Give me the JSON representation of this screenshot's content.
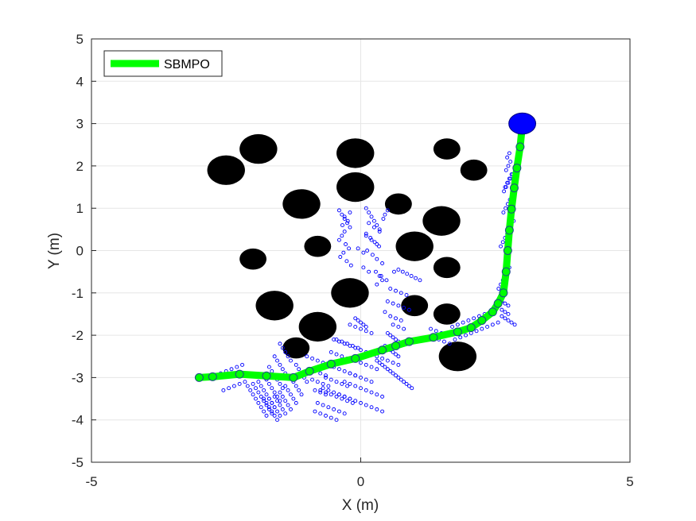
{
  "chart_data": {
    "type": "scatter",
    "title": "",
    "xlabel": "X (m)",
    "ylabel": "Y (m)",
    "xlim": [
      -5,
      5
    ],
    "ylim": [
      -5,
      5
    ],
    "xticks": [
      "-5",
      "0",
      "5"
    ],
    "yticks": [
      "5",
      "4",
      "3",
      "2",
      "1",
      "0",
      "-1",
      "-2",
      "-3",
      "-4",
      "-5"
    ],
    "grid": true,
    "legend": {
      "position": "top-left",
      "entries": [
        "SBMPO"
      ]
    },
    "colors": {
      "path": "#00ff00",
      "obstacle": "#000000",
      "samples": "#0000ff",
      "goal": "#0000ff"
    },
    "obstacles": [
      {
        "x": -1.9,
        "y": 2.4,
        "r": 0.35
      },
      {
        "x": -2.5,
        "y": 1.9,
        "r": 0.35
      },
      {
        "x": -0.1,
        "y": 2.3,
        "r": 0.35
      },
      {
        "x": -0.1,
        "y": 1.5,
        "r": 0.35
      },
      {
        "x": 1.6,
        "y": 2.4,
        "r": 0.25
      },
      {
        "x": 2.1,
        "y": 1.9,
        "r": 0.25
      },
      {
        "x": -1.1,
        "y": 1.1,
        "r": 0.35
      },
      {
        "x": 0.7,
        "y": 1.1,
        "r": 0.25
      },
      {
        "x": 1.5,
        "y": 0.7,
        "r": 0.35
      },
      {
        "x": -0.8,
        "y": 0.1,
        "r": 0.25
      },
      {
        "x": 1.0,
        "y": 0.1,
        "r": 0.35
      },
      {
        "x": -2.0,
        "y": -0.2,
        "r": 0.25
      },
      {
        "x": 1.6,
        "y": -0.4,
        "r": 0.25
      },
      {
        "x": -0.2,
        "y": -1.0,
        "r": 0.35
      },
      {
        "x": -1.6,
        "y": -1.3,
        "r": 0.35
      },
      {
        "x": 1.0,
        "y": -1.3,
        "r": 0.25
      },
      {
        "x": 1.6,
        "y": -1.5,
        "r": 0.25
      },
      {
        "x": -0.8,
        "y": -1.8,
        "r": 0.35
      },
      {
        "x": -1.2,
        "y": -2.3,
        "r": 0.25
      },
      {
        "x": 1.8,
        "y": -2.5,
        "r": 0.35
      }
    ],
    "series": [
      {
        "name": "SBMPO",
        "x": [
          -3.0,
          -2.75,
          -2.25,
          -1.75,
          -1.25,
          -0.95,
          -0.55,
          -0.1,
          0.4,
          0.65,
          0.9,
          1.35,
          1.8,
          2.05,
          2.25,
          2.45,
          2.55,
          2.65,
          2.7,
          2.73,
          2.76,
          2.8,
          2.85,
          2.9,
          2.96,
          3.0
        ],
        "y": [
          -3.0,
          -2.98,
          -2.92,
          -2.96,
          -3.0,
          -2.85,
          -2.68,
          -2.55,
          -2.35,
          -2.25,
          -2.15,
          -2.05,
          -1.92,
          -1.82,
          -1.65,
          -1.45,
          -1.25,
          -1.0,
          -0.5,
          0.0,
          0.48,
          0.98,
          1.48,
          1.95,
          2.45,
          2.95
        ]
      }
    ],
    "goal": {
      "x": 3.0,
      "y": 3.0
    },
    "samples": {
      "x": [
        -0.4,
        -0.35,
        -0.3,
        -0.25,
        -0.2,
        -0.3,
        -0.35,
        -0.4,
        -0.28,
        -0.22,
        -0.32,
        -0.38,
        -0.26,
        -0.18,
        -0.34,
        -0.24,
        -0.3,
        -0.2,
        0.1,
        0.15,
        0.2,
        0.25,
        0.3,
        0.35,
        0.1,
        0.18,
        0.26,
        0.34,
        0.12,
        0.22,
        0.3,
        0.4,
        0.05,
        0.15,
        0.25,
        0.35,
        0.1,
        0.2,
        0.3,
        -0.05,
        0.05,
        0.15,
        0.42,
        0.45,
        0.5,
        0.38,
        0.48,
        0.3,
        0.28,
        0.35,
        0.4,
        0.62,
        0.7,
        0.78,
        0.86,
        0.94,
        1.02,
        1.1,
        0.55,
        0.65,
        0.75,
        0.85,
        0.5,
        0.6,
        0.7,
        0.8,
        0.9,
        0.45,
        0.55,
        0.65,
        0.75,
        0.6,
        0.7,
        0.8,
        0.5,
        0.55,
        0.6,
        0.65,
        0.7,
        0.45,
        0.5,
        0.55,
        0.6,
        0.65,
        0.7,
        -0.1,
        -0.05,
        0.0,
        0.05,
        0.1,
        -0.2,
        -0.1,
        0.0,
        0.1,
        0.2,
        0.3,
        0.35,
        0.4,
        0.45,
        0.5,
        0.55,
        0.6,
        0.65,
        0.7,
        0.75,
        0.8,
        0.85,
        0.9,
        0.95,
        -0.45,
        -0.35,
        -0.25,
        -0.15,
        -0.05,
        -0.55,
        -0.45,
        -0.35,
        -0.25,
        -0.6,
        -0.5,
        -0.4,
        -0.3,
        -0.2,
        -0.1,
        -0.65,
        -0.55,
        -0.45,
        -0.35,
        -0.25,
        -0.7,
        -0.6,
        -0.5,
        -0.4,
        -0.3,
        -0.2,
        -0.75,
        -0.65,
        -0.55,
        -0.45,
        -0.35,
        -0.25,
        -0.15,
        -0.8,
        -0.7,
        -0.6,
        -0.5,
        -0.4,
        -0.3,
        -0.85,
        -0.75,
        -0.65,
        -0.55,
        -0.45,
        -0.1,
        0.0,
        0.1,
        0.2,
        0.3,
        -0.2,
        -0.1,
        0.0,
        0.1,
        0.2,
        -0.3,
        -0.2,
        -0.1,
        0.0,
        0.1,
        0.2,
        0.3,
        0.4,
        -0.4,
        -0.3,
        -0.2,
        -0.1,
        0.0,
        0.1,
        0.2,
        0.3,
        0.4,
        -0.5,
        -0.4,
        -0.3,
        -0.2,
        -0.1,
        0.0,
        0.1,
        0.2,
        0.3,
        0.4,
        0.5,
        0.6,
        0.7,
        -1.5,
        -1.45,
        -1.4,
        -1.35,
        -1.3,
        -1.6,
        -1.55,
        -1.5,
        -1.45,
        -1.4,
        -1.35,
        -1.7,
        -1.65,
        -1.6,
        -1.55,
        -1.5,
        -1.45,
        -1.8,
        -1.75,
        -1.7,
        -1.65,
        -1.6,
        -1.55,
        -1.5,
        -1.9,
        -1.85,
        -1.8,
        -1.75,
        -1.7,
        -1.65,
        -1.6,
        -2.0,
        -1.95,
        -1.9,
        -1.85,
        -1.8,
        -1.75,
        -1.7,
        -1.65,
        -2.1,
        -2.05,
        -2.0,
        -1.95,
        -1.9,
        -1.85,
        -1.8,
        -1.75,
        -1.2,
        -1.15,
        -1.1,
        -1.05,
        -1.0,
        -1.3,
        -1.25,
        -1.2,
        -1.15,
        -1.1,
        -1.4,
        -1.35,
        -1.3,
        -1.25,
        -1.2,
        -1.5,
        -1.45,
        -1.4,
        -1.35,
        -1.3,
        -1.6,
        -1.55,
        -1.5,
        -1.45,
        -1.4,
        -1.7,
        -1.65,
        -1.6,
        -1.55,
        -1.5,
        -1.8,
        -1.75,
        -1.7,
        -1.65,
        -1.6,
        -1.55,
        -2.2,
        -2.3,
        -2.4,
        -2.5,
        -2.6,
        -2.7,
        -2.15,
        -2.25,
        -2.35,
        -2.45,
        -2.55,
        -1.0,
        -0.9,
        -0.8,
        -0.7,
        -0.95,
        -0.85,
        -0.75,
        -0.65,
        -0.9,
        -0.8,
        -0.7,
        -0.6,
        -0.85,
        -0.75,
        -0.65,
        1.3,
        1.4,
        1.5,
        1.6,
        1.7,
        1.8,
        1.9,
        2.0,
        2.1,
        2.2,
        2.3,
        2.4,
        2.5,
        1.35,
        1.45,
        1.55,
        1.65,
        1.75,
        1.85,
        1.95,
        2.05,
        2.15,
        2.25,
        2.35,
        2.45,
        2.55,
        2.62,
        2.68,
        2.74,
        2.62,
        2.68,
        2.74,
        2.8,
        2.86,
        2.62,
        2.68,
        2.74,
        2.56,
        2.6,
        2.64,
        2.68,
        2.72,
        2.76,
        2.6,
        2.64,
        2.68,
        2.72,
        2.76,
        2.8,
        2.84,
        2.65,
        2.69,
        2.73,
        2.77,
        2.81,
        2.66,
        2.7,
        2.74,
        2.78,
        2.82,
        2.68,
        2.72,
        2.76,
        2.8,
        2.7,
        2.74,
        2.78,
        2.72,
        2.76
      ],
      "y": [
        0.95,
        0.85,
        0.75,
        0.65,
        0.55,
        0.45,
        0.35,
        0.25,
        0.15,
        0.05,
        -0.05,
        -0.15,
        -0.25,
        -0.35,
        0.6,
        0.7,
        0.8,
        0.9,
        1.0,
        0.9,
        0.8,
        0.7,
        0.6,
        0.5,
        0.4,
        0.3,
        0.2,
        0.1,
        0.0,
        -0.1,
        -0.2,
        -0.3,
        -0.4,
        -0.5,
        0.55,
        0.45,
        0.35,
        0.25,
        0.15,
        0.05,
        -0.05,
        0.65,
        0.75,
        0.85,
        0.95,
        -0.6,
        -0.7,
        -0.8,
        -0.5,
        -0.6,
        -0.7,
        -0.5,
        -0.45,
        -0.5,
        -0.55,
        -0.6,
        -0.65,
        -0.7,
        -0.9,
        -0.95,
        -1.0,
        -1.05,
        -1.2,
        -1.25,
        -1.3,
        -1.35,
        -1.4,
        -1.45,
        -1.55,
        -1.6,
        -1.65,
        -1.75,
        -1.8,
        -1.85,
        -1.95,
        -2.0,
        -2.05,
        -2.1,
        -2.15,
        -2.25,
        -2.3,
        -2.35,
        -2.4,
        -2.45,
        -2.5,
        -1.6,
        -1.65,
        -1.7,
        -1.75,
        -1.8,
        -1.75,
        -1.8,
        -1.85,
        -1.9,
        -1.95,
        -2.6,
        -2.65,
        -2.7,
        -2.75,
        -2.8,
        -2.85,
        -2.9,
        -2.95,
        -3.0,
        -3.05,
        -3.1,
        -3.15,
        -3.2,
        -3.25,
        -2.1,
        -2.15,
        -2.2,
        -2.25,
        -2.3,
        -2.4,
        -2.45,
        -2.5,
        -2.55,
        -2.7,
        -2.75,
        -2.8,
        -2.85,
        -2.9,
        -2.95,
        -3.0,
        -3.05,
        -3.1,
        -3.15,
        -3.2,
        -3.25,
        -3.3,
        -3.35,
        -3.4,
        -3.45,
        -3.5,
        -3.3,
        -3.35,
        -3.4,
        -3.45,
        -3.5,
        -3.55,
        -3.6,
        -3.6,
        -3.65,
        -3.7,
        -3.75,
        -3.8,
        -3.85,
        -3.8,
        -3.85,
        -3.9,
        -3.95,
        -4.0,
        -2.6,
        -2.65,
        -2.7,
        -2.75,
        -2.8,
        -2.9,
        -2.95,
        -3.0,
        -3.05,
        -3.1,
        -3.1,
        -3.15,
        -3.2,
        -3.25,
        -3.3,
        -3.35,
        -3.4,
        -3.45,
        -3.4,
        -3.45,
        -3.5,
        -3.55,
        -3.6,
        -3.65,
        -3.7,
        -3.75,
        -3.8,
        -2.1,
        -2.15,
        -2.2,
        -2.25,
        -2.3,
        -2.35,
        -2.4,
        -2.45,
        -2.5,
        -2.55,
        -2.6,
        -2.65,
        -2.7,
        -2.2,
        -2.3,
        -2.4,
        -2.5,
        -2.6,
        -2.5,
        -2.6,
        -2.7,
        -2.8,
        -2.9,
        -3.0,
        -2.75,
        -2.85,
        -2.95,
        -3.05,
        -3.15,
        -3.25,
        -2.95,
        -3.05,
        -3.15,
        -3.25,
        -3.35,
        -3.45,
        -3.55,
        -3.1,
        -3.2,
        -3.3,
        -3.4,
        -3.5,
        -3.6,
        -3.7,
        -3.15,
        -3.25,
        -3.35,
        -3.45,
        -3.55,
        -3.65,
        -3.75,
        -3.85,
        -3.2,
        -3.3,
        -3.4,
        -3.5,
        -3.6,
        -3.7,
        -3.8,
        -3.9,
        -2.7,
        -2.8,
        -2.9,
        -3.0,
        -3.1,
        -3.0,
        -3.1,
        -3.2,
        -3.3,
        -3.4,
        -3.2,
        -3.3,
        -3.4,
        -3.5,
        -3.6,
        -3.35,
        -3.45,
        -3.55,
        -3.65,
        -3.75,
        -3.45,
        -3.55,
        -3.65,
        -3.75,
        -3.85,
        -3.5,
        -3.6,
        -3.7,
        -3.8,
        -3.9,
        -3.5,
        -3.6,
        -3.7,
        -3.8,
        -3.9,
        -4.0,
        -2.7,
        -2.75,
        -2.8,
        -2.85,
        -2.9,
        -2.95,
        -3.1,
        -3.15,
        -3.2,
        -3.25,
        -3.3,
        -2.5,
        -2.55,
        -2.6,
        -2.65,
        -2.8,
        -2.85,
        -2.9,
        -2.95,
        -3.05,
        -3.1,
        -3.15,
        -3.2,
        -3.3,
        -3.35,
        -3.4,
        -1.85,
        -1.9,
        -1.95,
        -2.0,
        -1.8,
        -1.75,
        -1.7,
        -1.65,
        -1.6,
        -1.55,
        -1.5,
        -1.45,
        -1.4,
        -2.05,
        -2.1,
        -2.15,
        -2.2,
        -2.1,
        -2.05,
        -2.0,
        -1.95,
        -1.9,
        -1.85,
        -1.8,
        -1.75,
        -1.7,
        -1.4,
        -1.45,
        -1.5,
        -1.55,
        -1.6,
        -1.65,
        -1.7,
        -1.75,
        -1.2,
        -1.25,
        -1.3,
        -0.9,
        -0.8,
        -0.7,
        -0.6,
        -0.5,
        -0.4,
        0.1,
        0.2,
        0.3,
        0.4,
        0.5,
        0.6,
        0.7,
        0.9,
        1.0,
        1.1,
        1.2,
        1.3,
        1.4,
        1.5,
        1.6,
        1.7,
        1.8,
        1.5,
        1.6,
        1.7,
        1.8,
        1.9,
        2.0,
        2.1,
        2.2,
        2.3
      ]
    }
  }
}
